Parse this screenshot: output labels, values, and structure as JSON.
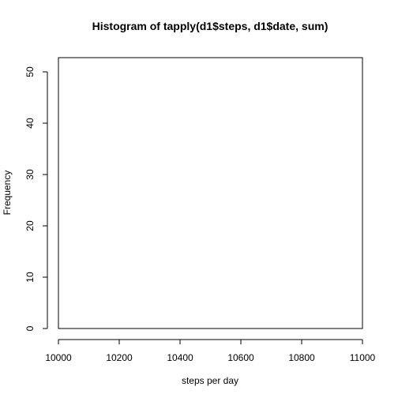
{
  "chart_data": {
    "type": "bar",
    "title": "Histogram of tapply(d1$steps, d1$date, sum)",
    "xlabel": "steps per day",
    "ylabel": "Frequency",
    "xlim": [
      10000,
      11000
    ],
    "ylim": [
      0,
      50
    ],
    "x_ticks": [
      10000,
      10200,
      10400,
      10600,
      10800,
      11000
    ],
    "x_tick_labels": [
      "10000",
      "10200",
      "10400",
      "10600",
      "10800",
      "11000"
    ],
    "y_ticks": [
      0,
      10,
      20,
      30,
      40,
      50
    ],
    "y_tick_labels": [
      "0",
      "10",
      "20",
      "30",
      "40",
      "50"
    ],
    "categories": [],
    "values": [],
    "grid": false
  }
}
